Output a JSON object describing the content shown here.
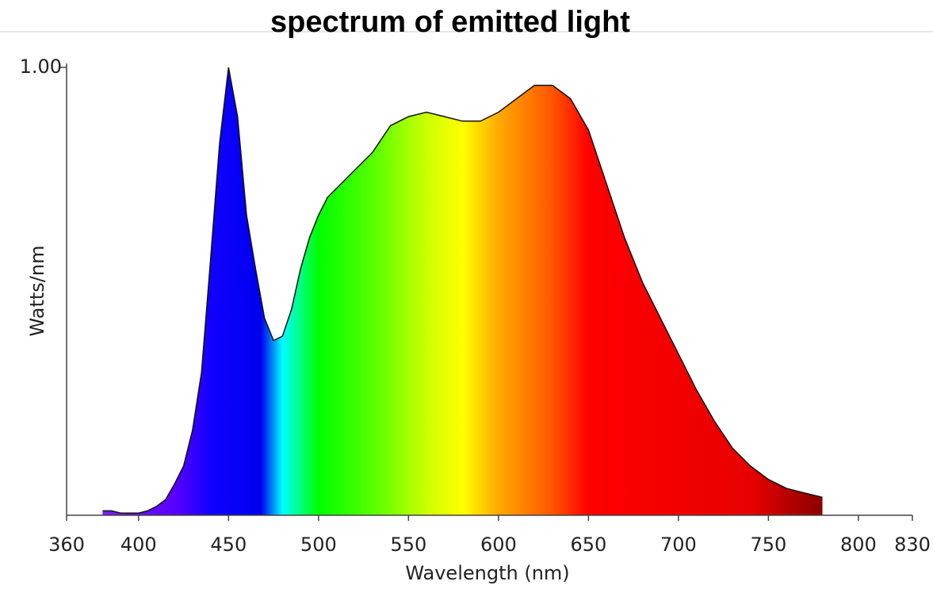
{
  "chart_data": {
    "type": "area",
    "title": "spectrum of emitted light",
    "x_label": "Wavelength (nm)",
    "y_label": "Watts/nm",
    "x": [
      380,
      385,
      390,
      400,
      405,
      410,
      415,
      420,
      425,
      430,
      435,
      440,
      445,
      450,
      455,
      460,
      465,
      470,
      475,
      480,
      485,
      490,
      495,
      500,
      505,
      510,
      520,
      530,
      540,
      550,
      560,
      570,
      580,
      590,
      600,
      610,
      620,
      630,
      640,
      650,
      660,
      670,
      680,
      690,
      700,
      710,
      720,
      730,
      740,
      750,
      760,
      770,
      780
    ],
    "values": [
      0.01,
      0.01,
      0.005,
      0.005,
      0.01,
      0.02,
      0.035,
      0.07,
      0.11,
      0.19,
      0.32,
      0.57,
      0.83,
      1.0,
      0.89,
      0.67,
      0.55,
      0.44,
      0.39,
      0.4,
      0.46,
      0.55,
      0.62,
      0.67,
      0.71,
      0.73,
      0.77,
      0.81,
      0.87,
      0.89,
      0.9,
      0.89,
      0.88,
      0.88,
      0.9,
      0.93,
      0.96,
      0.96,
      0.93,
      0.86,
      0.74,
      0.62,
      0.52,
      0.44,
      0.36,
      0.28,
      0.21,
      0.15,
      0.11,
      0.08,
      0.06,
      0.05,
      0.04
    ],
    "xlim": [
      360,
      830
    ],
    "xticks": [
      360,
      400,
      450,
      500,
      550,
      600,
      650,
      700,
      750,
      800,
      830
    ],
    "ylim": [
      0,
      1
    ],
    "yticks": [
      {
        "value": 1,
        "label": "1.00"
      }
    ]
  }
}
